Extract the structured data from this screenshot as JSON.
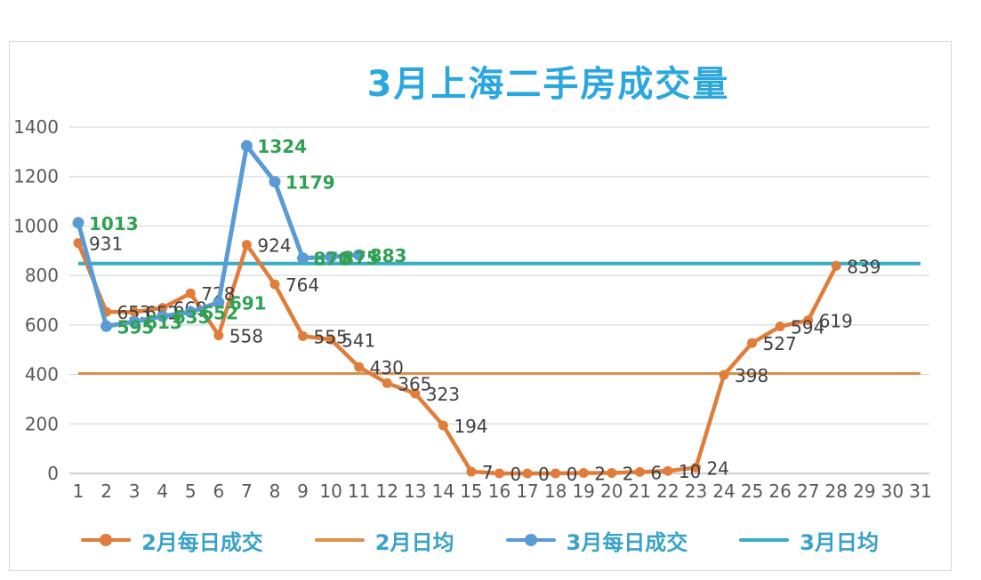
{
  "title": "3月上海二手房成交量",
  "colors": {
    "title_blue": "#2aa7de",
    "feb_orange": "#e07d3a",
    "feb_avg_orange": "#dd9049",
    "mar_blue": "#5b9bd5",
    "mar_avg_cyan": "#38aec2",
    "mar_label_green": "#2fa153",
    "feb_label_dark": "#404040",
    "axis_grey": "#595959",
    "gridline_grey": "#d9d9d9",
    "legend_text_teal": "#38a2c8"
  },
  "chart_data": {
    "type": "line",
    "title": "3月上海二手房成交量",
    "xlabel": "",
    "ylabel": "",
    "grid": true,
    "legend_position": "bottom",
    "ylim": [
      0,
      1400
    ],
    "y_ticks": [
      0,
      200,
      400,
      600,
      800,
      1000,
      1200,
      1400
    ],
    "x_ticks": [
      1,
      2,
      3,
      4,
      5,
      6,
      7,
      8,
      9,
      10,
      11,
      12,
      13,
      14,
      15,
      16,
      17,
      18,
      19,
      20,
      21,
      22,
      23,
      24,
      25,
      26,
      27,
      28,
      29,
      30,
      31
    ],
    "series": [
      {
        "name": "2月每日成交",
        "color": "#e07d3a",
        "line_width": 4.5,
        "marker_r": 5.5,
        "label_color": "#404040",
        "label_bold": false,
        "x": [
          1,
          2,
          3,
          4,
          5,
          6,
          7,
          8,
          9,
          10,
          11,
          12,
          13,
          14,
          15,
          16,
          17,
          18,
          19,
          20,
          21,
          22,
          23,
          24,
          25,
          26,
          27,
          28
        ],
        "values": [
          931,
          653,
          652,
          669,
          728,
          558,
          924,
          764,
          555,
          541,
          430,
          365,
          323,
          194,
          7,
          0,
          0,
          0,
          2,
          2,
          6,
          10,
          24,
          398,
          527,
          594,
          619,
          839
        ]
      },
      {
        "name": "3月每日成交",
        "color": "#5b9bd5",
        "line_width": 5,
        "marker_r": 6.5,
        "label_color": "#2fa153",
        "label_bold": true,
        "x": [
          1,
          2,
          3,
          4,
          5,
          6,
          7,
          8,
          9,
          10,
          11
        ],
        "values": [
          1013,
          595,
          613,
          635,
          652,
          691,
          1324,
          1179,
          870,
          875,
          883
        ]
      }
    ],
    "avg_lines": [
      {
        "name": "2月日均",
        "color": "#dd9049",
        "value": 404,
        "width": 3
      },
      {
        "name": "3月日均",
        "color": "#38aec2",
        "value": 848,
        "width": 4
      }
    ]
  },
  "legend": {
    "items": [
      {
        "label": "2月每日成交",
        "color": "#e07d3a",
        "marker": "line-dot"
      },
      {
        "label": "2月日均",
        "color": "#dd9049",
        "marker": "line"
      },
      {
        "label": "3月每日成交",
        "color": "#5b9bd5",
        "marker": "line-dot"
      },
      {
        "label": "3月日均",
        "color": "#38aec2",
        "marker": "line"
      }
    ]
  }
}
